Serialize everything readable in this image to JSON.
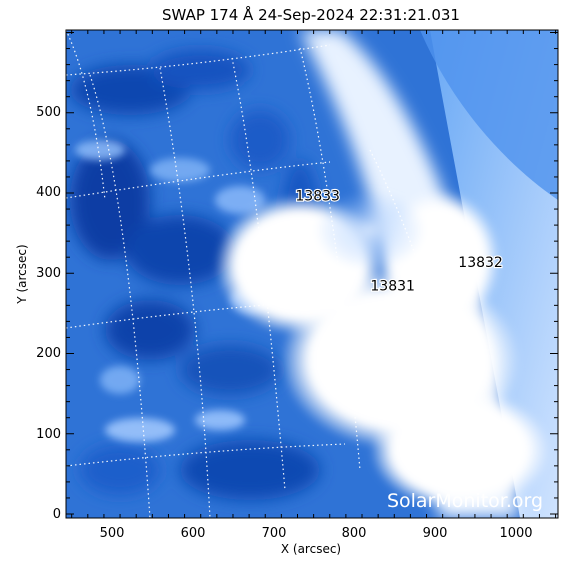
{
  "title": "SWAP 174 Å 24-Sep-2024 22:31:21.031",
  "x_axis": {
    "label": "X (arcsec)",
    "ticks": [
      "500",
      "600",
      "700",
      "800",
      "900",
      "1000"
    ]
  },
  "y_axis": {
    "label": "Y (arcsec)",
    "ticks": [
      "0",
      "100",
      "200",
      "300",
      "400",
      "500"
    ]
  },
  "active_regions": [
    {
      "label": "13833",
      "x_arcsec": 755,
      "y_arcsec": 397
    },
    {
      "label": "13832",
      "x_arcsec": 957,
      "y_arcsec": 314
    },
    {
      "label": "13831",
      "x_arcsec": 848,
      "y_arcsec": 285
    }
  ],
  "watermark": "SolarMonitor.org",
  "colors": {
    "plot_dark": "#0a3ea6",
    "plot_mid": "#3c85e6",
    "plot_light": "#9cc6ff",
    "plot_saturated": "#ffffff",
    "frame": "#000000"
  }
}
